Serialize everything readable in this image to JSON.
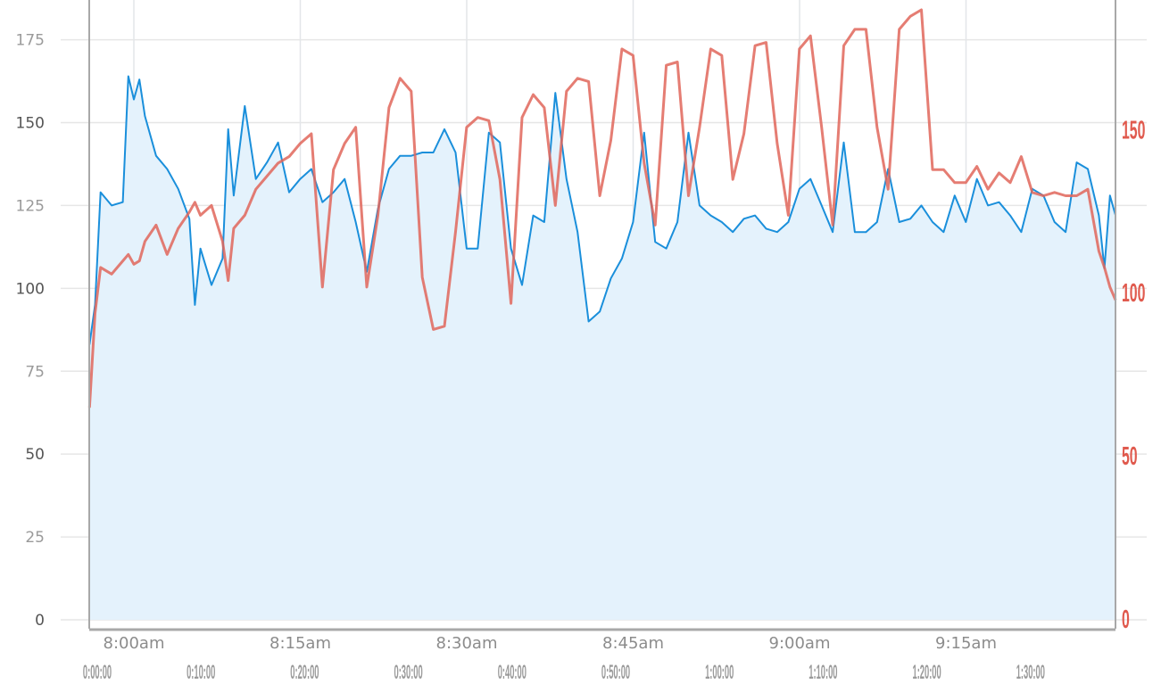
{
  "chart_data": {
    "type": "line",
    "grid": true,
    "legend": "none",
    "left_axis": {
      "ylim": [
        0,
        187
      ],
      "ticks": [
        "0",
        "25",
        "50",
        "75",
        "100",
        "125",
        "150",
        "175"
      ],
      "tick_values": [
        0,
        25,
        50,
        75,
        100,
        125,
        150,
        175
      ]
    },
    "right_axis": {
      "ylim": [
        0,
        190
      ],
      "ticks": [
        "0",
        "50",
        "100",
        "150"
      ],
      "tick_values": [
        0,
        50,
        100,
        150
      ]
    },
    "x_clock_ticks": [
      "8:00am",
      "8:15am",
      "8:30am",
      "8:45am",
      "9:00am",
      "9:15am"
    ],
    "x_elapsed_ticks": [
      "0:00:00",
      "0:10:00",
      "0:20:00",
      "0:30:00",
      "0:40:00",
      "0:50:00",
      "1:00:00",
      "1:10:00",
      "1:20:00",
      "1:30:00"
    ],
    "x_range": [
      "7:56:00",
      "9:28:30"
    ],
    "x": [
      "7:56:00",
      "7:56:30",
      "7:57:00",
      "7:58:00",
      "7:59:00",
      "7:59:30",
      "8:00:00",
      "8:00:30",
      "8:01:00",
      "8:02:00",
      "8:03:00",
      "8:04:00",
      "8:05:00",
      "8:05:30",
      "8:06:00",
      "8:07:00",
      "8:08:00",
      "8:08:30",
      "8:09:00",
      "8:10:00",
      "8:11:00",
      "8:12:00",
      "8:13:00",
      "8:14:00",
      "8:15:00",
      "8:16:00",
      "8:17:00",
      "8:18:00",
      "8:19:00",
      "8:20:00",
      "8:21:00",
      "8:22:00",
      "8:23:00",
      "8:24:00",
      "8:25:00",
      "8:26:00",
      "8:27:00",
      "8:28:00",
      "8:29:00",
      "8:30:00",
      "8:31:00",
      "8:32:00",
      "8:33:00",
      "8:34:00",
      "8:35:00",
      "8:36:00",
      "8:37:00",
      "8:38:00",
      "8:39:00",
      "8:40:00",
      "8:41:00",
      "8:42:00",
      "8:43:00",
      "8:44:00",
      "8:45:00",
      "8:46:00",
      "8:47:00",
      "8:48:00",
      "8:49:00",
      "8:50:00",
      "8:51:00",
      "8:52:00",
      "8:53:00",
      "8:54:00",
      "8:55:00",
      "8:56:00",
      "8:57:00",
      "8:58:00",
      "8:59:00",
      "9:00:00",
      "9:01:00",
      "9:02:00",
      "9:03:00",
      "9:04:00",
      "9:05:00",
      "9:06:00",
      "9:07:00",
      "9:08:00",
      "9:09:00",
      "9:10:00",
      "9:11:00",
      "9:12:00",
      "9:13:00",
      "9:14:00",
      "9:15:00",
      "9:16:00",
      "9:17:00",
      "9:18:00",
      "9:19:00",
      "9:20:00",
      "9:21:00",
      "9:22:00",
      "9:23:00",
      "9:24:00",
      "9:25:00",
      "9:26:00",
      "9:27:00",
      "9:27:30",
      "9:28:00",
      "9:28:30"
    ],
    "series": [
      {
        "axis": "left",
        "color": "#1a8fdb",
        "fill": "#e4f2fc",
        "values": [
          83,
          95,
          129,
          125,
          126,
          164,
          157,
          163,
          152,
          140,
          136,
          130,
          121,
          95,
          112,
          101,
          109,
          148,
          128,
          155,
          133,
          138,
          144,
          129,
          133,
          136,
          126,
          129,
          133,
          120,
          105,
          124,
          136,
          140,
          140,
          141,
          141,
          148,
          141,
          112,
          112,
          147,
          144,
          112,
          101,
          122,
          120,
          159,
          133,
          117,
          90,
          93,
          103,
          109,
          120,
          147,
          114,
          112,
          120,
          147,
          125,
          122,
          120,
          117,
          121,
          122,
          118,
          117,
          120,
          130,
          133,
          125,
          117,
          144,
          117,
          117,
          120,
          136,
          120,
          121,
          125,
          120,
          117,
          128,
          120,
          133,
          125,
          126,
          122,
          117,
          130,
          128,
          120,
          117,
          138,
          136,
          122,
          106,
          128,
          122
        ]
      },
      {
        "axis": "right",
        "color": "#e0665a",
        "values": [
          65,
          94,
          108,
          106,
          110,
          112,
          109,
          110,
          116,
          121,
          112,
          120,
          125,
          128,
          124,
          127,
          116,
          104,
          120,
          124,
          132,
          136,
          140,
          142,
          146,
          149,
          102,
          138,
          146,
          151,
          102,
          124,
          157,
          166,
          162,
          105,
          89,
          90,
          119,
          151,
          154,
          153,
          135,
          97,
          154,
          161,
          157,
          127,
          162,
          166,
          165,
          130,
          147,
          175,
          173,
          140,
          121,
          170,
          171,
          130,
          151,
          175,
          173,
          135,
          149,
          176,
          177,
          146,
          124,
          175,
          179,
          151,
          121,
          176,
          181,
          181,
          151,
          132,
          181,
          185,
          187,
          138,
          138,
          134,
          134,
          139,
          132,
          137,
          134,
          142,
          131,
          130,
          131,
          130,
          130,
          132,
          113,
          108,
          102,
          98
        ]
      }
    ]
  }
}
